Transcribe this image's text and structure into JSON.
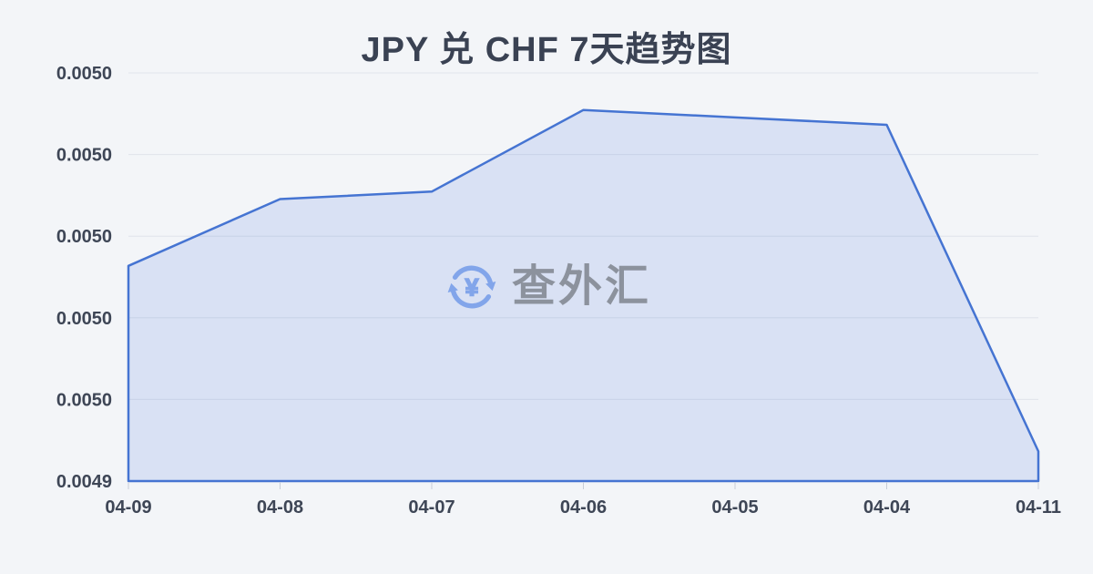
{
  "page": {
    "background": "#f3f5f8"
  },
  "title": {
    "text": "JPY 兑 CHF 7天趋势图",
    "color": "#3a4253"
  },
  "watermark": {
    "name": "查外汇",
    "currency_symbol": "¥",
    "icon": "currency-exchange-icon",
    "icon_color": "#82a5ea",
    "text_color": "#8c929d"
  },
  "chart_data": {
    "type": "area",
    "title": "JPY 兑 CHF 7天趋势图",
    "categories": [
      "04-09",
      "04-08",
      "04-07",
      "04-06",
      "04-05",
      "04-04",
      "04-11"
    ],
    "values": [
      0.004974,
      0.004983,
      0.004984,
      0.004995,
      0.004994,
      0.004993,
      0.004949
    ],
    "ylim": [
      0.004945,
      0.005
    ],
    "y_tick_labels_top_to_bottom": [
      "0.0050",
      "0.0050",
      "0.0050",
      "0.0050",
      "0.0050",
      "0.0049"
    ],
    "xlabel": "",
    "ylabel": "",
    "grid": true,
    "legend": false,
    "line_color": "#4574d2",
    "fill_color": "#d9e1f4",
    "axis_label_color": "#3e4656",
    "gridline_color": "rgba(70,90,130,0.10)",
    "tick_color": "#c8cdd8"
  }
}
